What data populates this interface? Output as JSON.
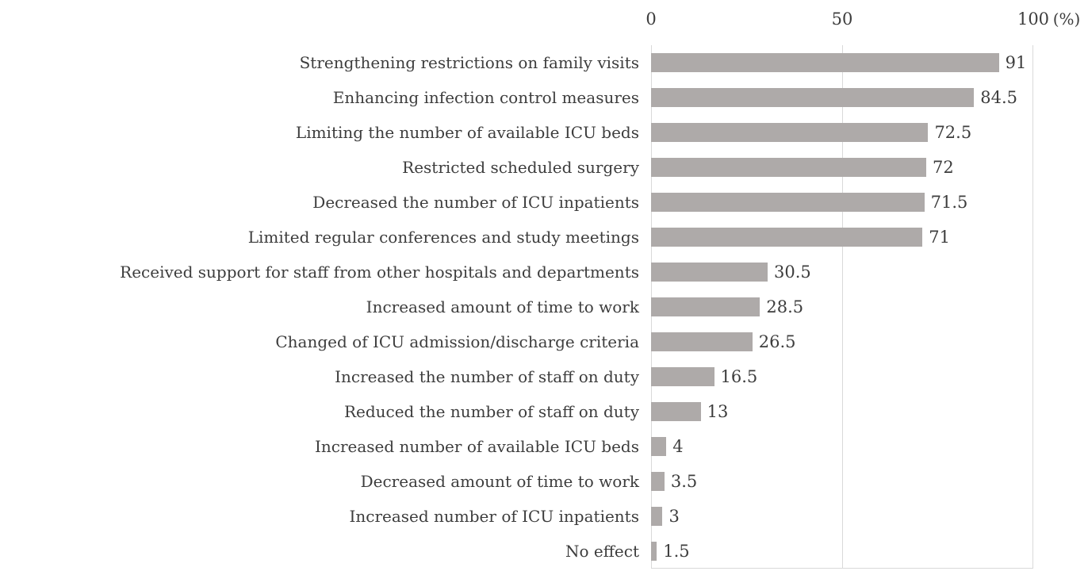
{
  "chart_data": {
    "type": "bar",
    "orientation": "horizontal",
    "unit_label": "(%)",
    "categories": [
      "Strengthening restrictions on family visits",
      "Enhancing infection control measures",
      "Limiting the number of available ICU beds",
      "Restricted scheduled surgery",
      "Decreased the number of ICU inpatients",
      "Limited regular conferences and study meetings",
      "Received support for staff from other hospitals and departments",
      "Increased amount of time to work",
      "Changed of ICU admission/discharge criteria",
      "Increased the number of staff on duty",
      "Reduced the number of staff on duty",
      "Increased number of available ICU beds",
      "Decreased amount of time to work",
      "Increased number of ICU inpatients",
      "No effect"
    ],
    "values": [
      91,
      84.5,
      72.5,
      72,
      71.5,
      71,
      30.5,
      28.5,
      26.5,
      16.5,
      13,
      4,
      3.5,
      3,
      1.5
    ],
    "value_labels": [
      "91",
      "84.5",
      "72.5",
      "72",
      "71.5",
      "71",
      "30.5",
      "28.5",
      "26.5",
      "16.5",
      "13",
      "4",
      "3.5",
      "3",
      "1.5"
    ],
    "xlim": [
      0,
      100
    ],
    "x_ticks": [
      0,
      50,
      100
    ],
    "x_tick_labels": [
      "0",
      "50",
      "100"
    ],
    "grid": true,
    "legend": false,
    "colors": {
      "bar": "#aeaaa9",
      "axis_grid": "#d9d9d9",
      "text": "#3d3d3d",
      "background": "#ffffff"
    }
  }
}
